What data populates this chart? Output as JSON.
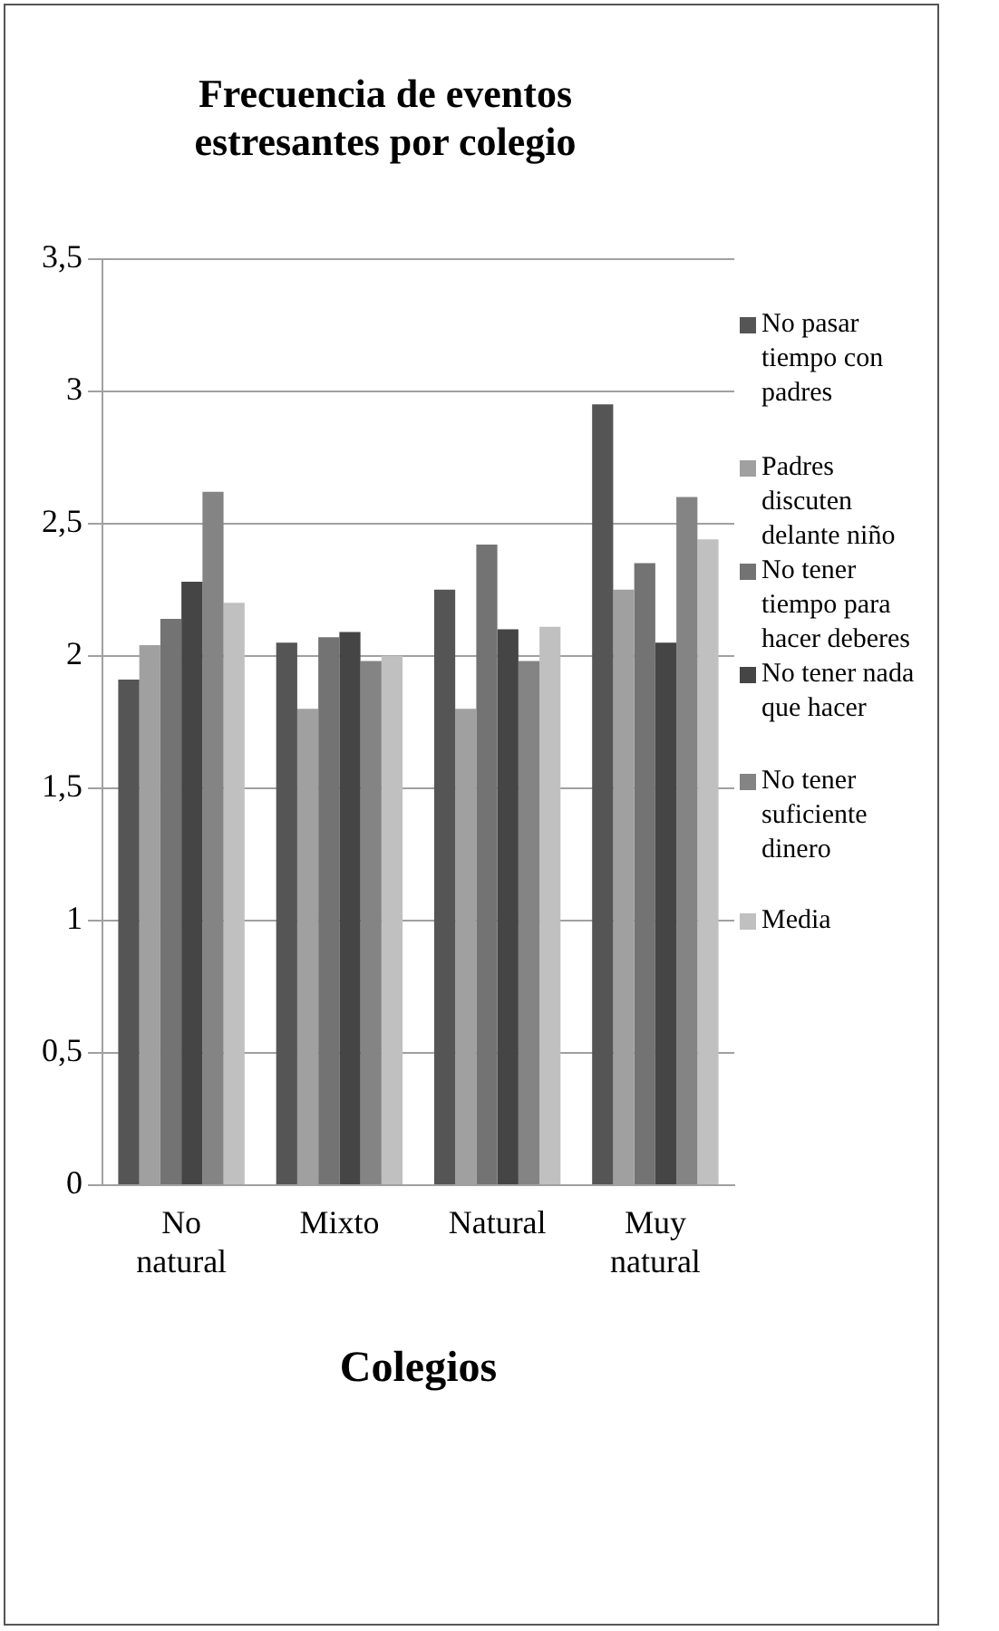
{
  "chart_data": {
    "type": "bar",
    "title": "Frecuencia de eventos estresantes por colegio",
    "xlabel": "Colegios",
    "categories": [
      "No natural",
      "Mixto",
      "Natural",
      "Muy natural"
    ],
    "series": [
      {
        "name": "No pasar tiempo con padres",
        "color": "#555555",
        "values": [
          1.91,
          2.05,
          2.25,
          2.95
        ]
      },
      {
        "name": "Padres discuten delante niño",
        "color": "#a0a0a0",
        "values": [
          2.04,
          1.8,
          1.8,
          2.25
        ]
      },
      {
        "name": "No tener tiempo para hacer deberes",
        "color": "#737373",
        "values": [
          2.14,
          2.07,
          2.42,
          2.35
        ]
      },
      {
        "name": "No tener nada que hacer",
        "color": "#454545",
        "values": [
          2.28,
          2.09,
          2.1,
          2.05
        ]
      },
      {
        "name": "No tener suficiente dinero",
        "color": "#848484",
        "values": [
          2.62,
          1.98,
          1.98,
          2.6
        ]
      },
      {
        "name": "Media",
        "color": "#c0c0c0",
        "values": [
          2.2,
          2.0,
          2.11,
          2.44
        ]
      }
    ],
    "ylim": [
      0,
      3.5
    ],
    "yticks": [
      {
        "value": 0,
        "label": "0"
      },
      {
        "value": 0.5,
        "label": "0,5"
      },
      {
        "value": 1,
        "label": "1"
      },
      {
        "value": 1.5,
        "label": "1,5"
      },
      {
        "value": 2,
        "label": "2"
      },
      {
        "value": 2.5,
        "label": "2,5"
      },
      {
        "value": 3,
        "label": "3"
      },
      {
        "value": 3.5,
        "label": "3,5"
      }
    ],
    "grid": "y",
    "legend": "right"
  }
}
